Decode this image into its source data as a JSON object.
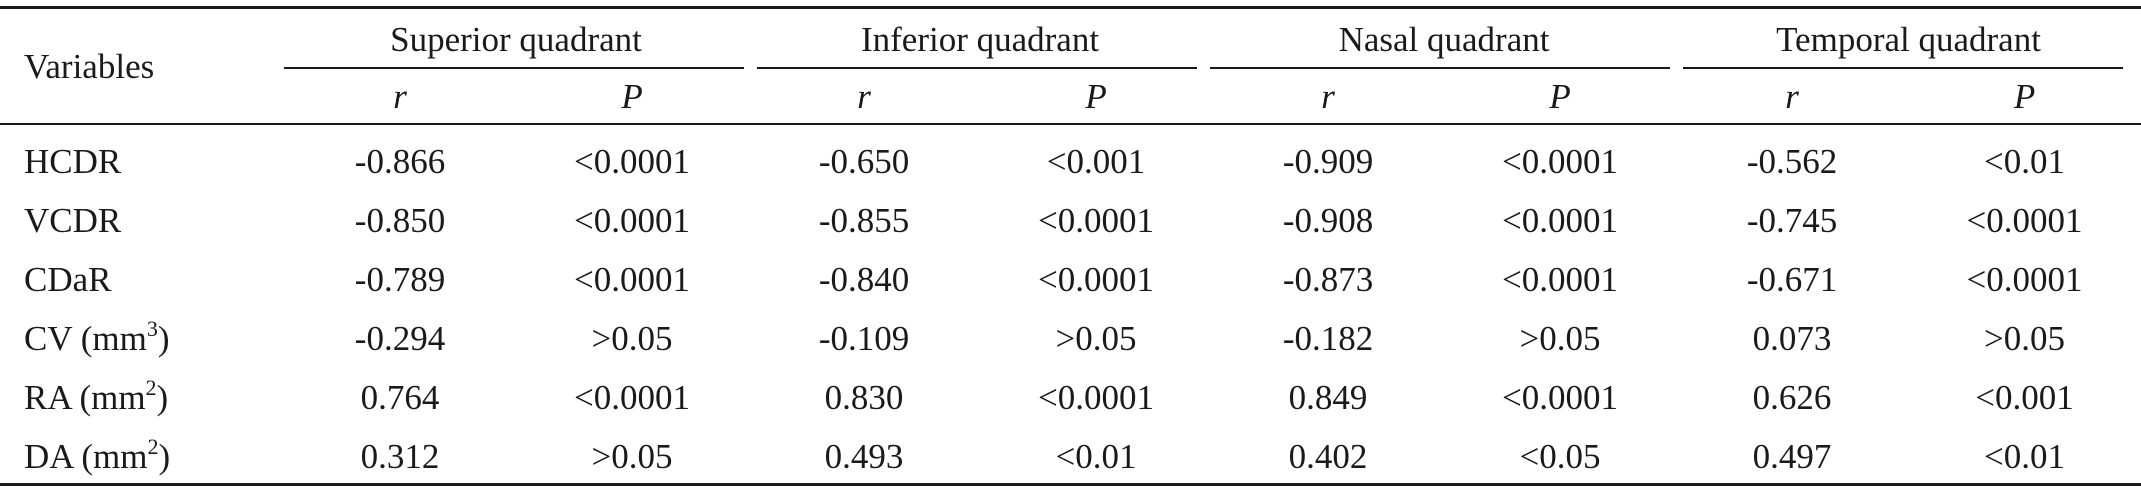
{
  "table": {
    "variables_header": "Variables",
    "groups": [
      {
        "label": "Superior quadrant"
      },
      {
        "label": "Inferior quadrant"
      },
      {
        "label": "Nasal quadrant"
      },
      {
        "label": "Temporal quadrant"
      }
    ],
    "subheaders": [
      "r",
      "P",
      "r",
      "P",
      "r",
      "P",
      "r",
      "P"
    ],
    "rows": [
      {
        "variable": "HCDR",
        "unit_exp": "",
        "suffix": "",
        "values": [
          "-0.866",
          "<0.0001",
          "-0.650",
          "<0.001",
          "-0.909",
          "<0.0001",
          "-0.562",
          "<0.01"
        ]
      },
      {
        "variable": "VCDR",
        "unit_exp": "",
        "suffix": "",
        "values": [
          "-0.850",
          "<0.0001",
          "-0.855",
          "<0.0001",
          "-0.908",
          "<0.0001",
          "-0.745",
          "<0.0001"
        ]
      },
      {
        "variable": "CDaR",
        "unit_exp": "",
        "suffix": "",
        "values": [
          "-0.789",
          "<0.0001",
          "-0.840",
          "<0.0001",
          "-0.873",
          "<0.0001",
          "-0.671",
          "<0.0001"
        ]
      },
      {
        "variable": "CV (mm",
        "unit_exp": "3",
        "suffix": ")",
        "values": [
          "-0.294",
          ">0.05",
          "-0.109",
          ">0.05",
          "-0.182",
          ">0.05",
          "0.073",
          ">0.05"
        ]
      },
      {
        "variable": "RA (mm",
        "unit_exp": "2",
        "suffix": ")",
        "values": [
          "0.764",
          "<0.0001",
          "0.830",
          "<0.0001",
          "0.849",
          "<0.0001",
          "0.626",
          "<0.001"
        ]
      },
      {
        "variable": "DA (mm",
        "unit_exp": "2",
        "suffix": ")",
        "values": [
          "0.312",
          ">0.05",
          "0.493",
          "<0.01",
          "0.402",
          "<0.05",
          "0.497",
          "<0.01"
        ]
      }
    ]
  }
}
